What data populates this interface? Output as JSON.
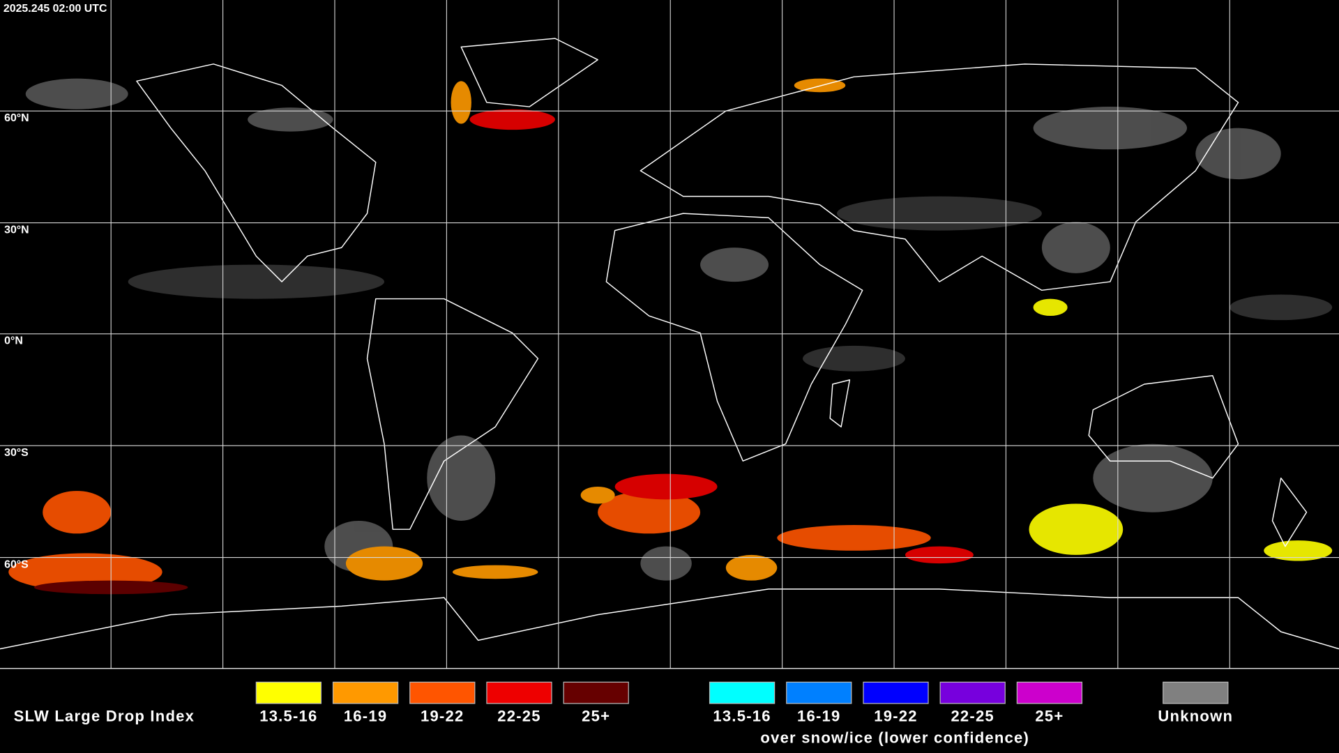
{
  "header": {
    "timestamp": "2025.245 02:00 UTC"
  },
  "lat_labels": [
    "60°N",
    "30°N",
    "0°N",
    "30°S",
    "60°S"
  ],
  "legend": {
    "title": "SLW Large Drop Index",
    "items": [
      {
        "label": "13.5-16",
        "color": "#ffff00"
      },
      {
        "label": "16-19",
        "color": "#ff9900"
      },
      {
        "label": "19-22",
        "color": "#ff5500"
      },
      {
        "label": "22-25",
        "color": "#ee0000"
      },
      {
        "label": "25+",
        "color": "#660000"
      }
    ],
    "snow_items": [
      {
        "label": "13.5-16",
        "color": "#00ffff"
      },
      {
        "label": "16-19",
        "color": "#0080ff"
      },
      {
        "label": "19-22",
        "color": "#0000ff"
      },
      {
        "label": "22-25",
        "color": "#7700dd"
      },
      {
        "label": "25+",
        "color": "#cc00cc"
      }
    ],
    "snow_note": "over snow/ice (lower confidence)",
    "unknown": {
      "label": "Unknown",
      "color": "#808080"
    }
  }
}
